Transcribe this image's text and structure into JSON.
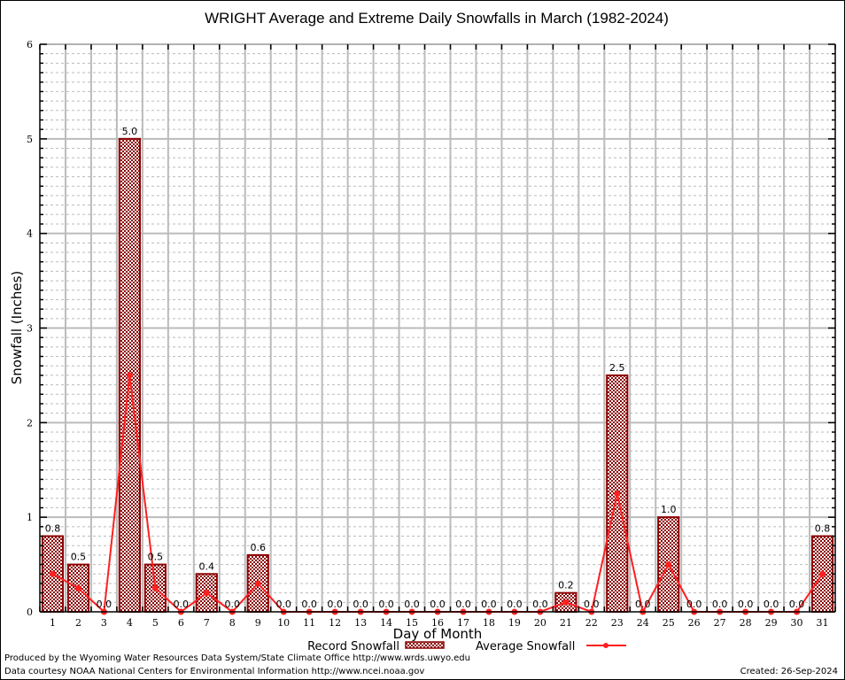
{
  "chart_data": {
    "type": "bar",
    "title": "WRIGHT Average and Extreme Daily Snowfalls in March (1982-2024)",
    "xlabel": "Day of Month",
    "ylabel": "Snowfall (Inches)",
    "ylim": [
      0,
      6
    ],
    "yticks": [
      "0",
      "1",
      "2",
      "3",
      "4",
      "5",
      "6"
    ],
    "grid": true,
    "categories": [
      "1",
      "2",
      "3",
      "4",
      "5",
      "6",
      "7",
      "8",
      "9",
      "10",
      "11",
      "12",
      "13",
      "14",
      "15",
      "16",
      "17",
      "18",
      "19",
      "20",
      "21",
      "22",
      "23",
      "24",
      "25",
      "26",
      "27",
      "28",
      "29",
      "30",
      "31"
    ],
    "series": [
      {
        "name": "Record Snowfall",
        "type": "bar",
        "color": "#8b0000",
        "values": [
          0.8,
          0.5,
          0.0,
          5.0,
          0.5,
          0.0,
          0.4,
          0.0,
          0.6,
          0.0,
          0.0,
          0.0,
          0.0,
          0.0,
          0.0,
          0.0,
          0.0,
          0.0,
          0.0,
          0.0,
          0.2,
          0.0,
          2.5,
          0.0,
          1.0,
          0.0,
          0.0,
          0.0,
          0.0,
          0.0,
          0.8
        ],
        "labels": [
          "0.8",
          "0.5",
          "0.0",
          "5.0",
          "0.5",
          "0.0",
          "0.4",
          "0.0",
          "0.6",
          "0.0",
          "0.0",
          "0.0",
          "0.0",
          "0.0",
          "0.0",
          "0.0",
          "0.0",
          "0.0",
          "0.0",
          "0.0",
          "0.2",
          "0.0",
          "2.5",
          "0.0",
          "1.0",
          "0.0",
          "0.0",
          "0.0",
          "0.0",
          "0.0",
          "0.8"
        ]
      },
      {
        "name": "Average Snowfall",
        "type": "line",
        "color": "#ff2020",
        "values": [
          0.4,
          0.25,
          0.0,
          2.5,
          0.25,
          0.0,
          0.2,
          0.0,
          0.3,
          0.0,
          0.0,
          0.0,
          0.0,
          0.0,
          0.0,
          0.0,
          0.0,
          0.0,
          0.0,
          0.0,
          0.1,
          0.0,
          1.25,
          0.0,
          0.5,
          0.0,
          0.0,
          0.0,
          0.0,
          0.0,
          0.4
        ]
      }
    ],
    "legend": {
      "position": "bottom",
      "record_label": "Record Snowfall",
      "average_label": "Average Snowfall"
    }
  },
  "footer": {
    "produced_by": "Produced by the Wyoming Water Resources Data System/State Climate Office http://www.wrds.uwyo.edu",
    "data_courtesy": "Data courtesy NOAA National Centers for Environmental Information http://www.ncei.noaa.gov",
    "created": "Created:  26-Sep-2024"
  }
}
